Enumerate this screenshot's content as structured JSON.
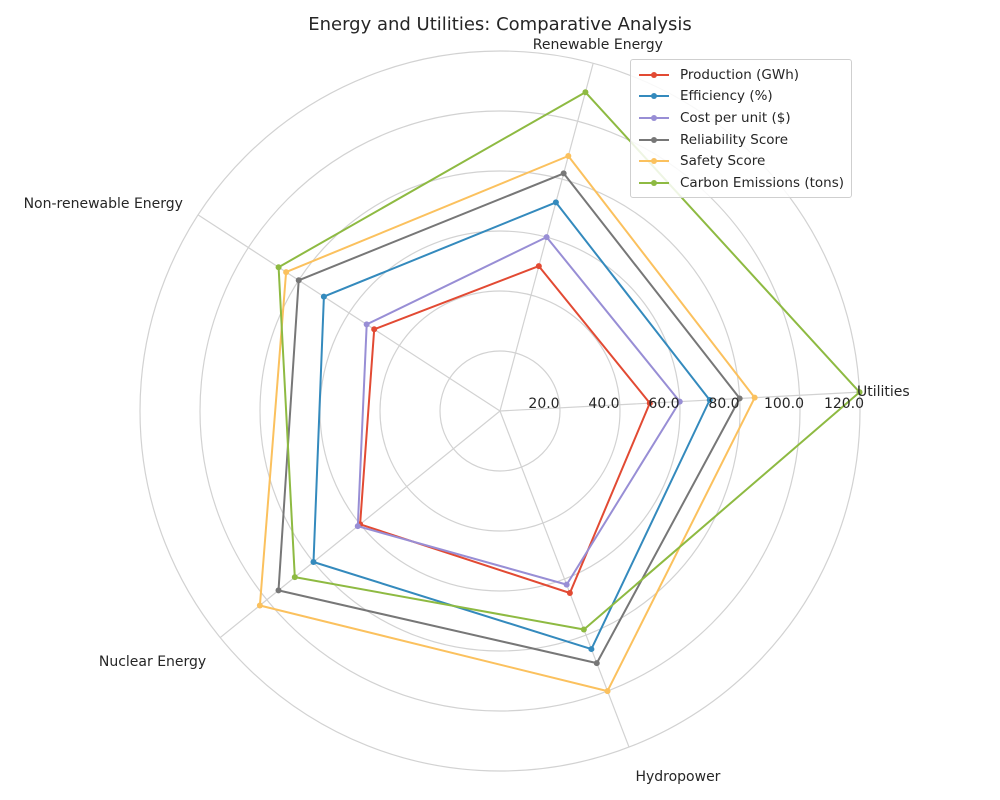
{
  "chart_data": {
    "type": "radar",
    "title": "Energy and Utilities: Comparative Analysis",
    "categories": [
      "Utilities",
      "Renewable Energy",
      "Non-renewable Energy",
      "Nuclear Energy",
      "Hydropower"
    ],
    "rlim": [
      0,
      120
    ],
    "radial_ticks": [
      20,
      40,
      60,
      80,
      100,
      120
    ],
    "radial_tick_labels": [
      "20.0",
      "40.0",
      "60.0",
      "80.0",
      "100.0",
      "120.0"
    ],
    "grid": true,
    "legend_position": "top-right",
    "series": [
      {
        "name": "Production (GWh)",
        "color": "#E24A33",
        "values": [
          50,
          50,
          50,
          60,
          65
        ]
      },
      {
        "name": "Efficiency (%)",
        "color": "#348ABD",
        "values": [
          70,
          72,
          70,
          80,
          85
        ]
      },
      {
        "name": "Cost per unit ($)",
        "color": "#988ED5",
        "values": [
          60,
          60,
          53,
          61,
          62
        ]
      },
      {
        "name": "Reliability Score",
        "color": "#777777",
        "values": [
          80,
          82,
          80,
          95,
          90
        ]
      },
      {
        "name": "Safety Score",
        "color": "#FBC15E",
        "values": [
          85,
          88,
          85,
          103,
          100
        ]
      },
      {
        "name": "Carbon Emissions (tons)",
        "color": "#8EBA42",
        "values": [
          120,
          110,
          88,
          88,
          78
        ]
      }
    ]
  }
}
